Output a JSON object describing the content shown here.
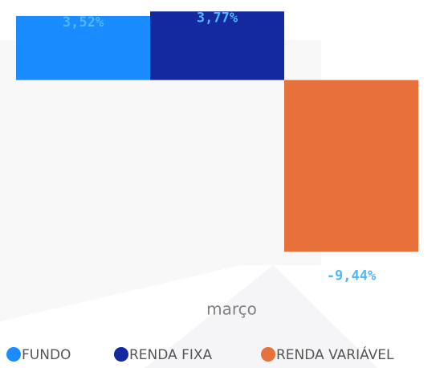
{
  "chart_data": {
    "type": "bar",
    "categories": [
      "março"
    ],
    "series": [
      {
        "name": "FUNDO",
        "color": "#1a8cff",
        "values": [
          3.52
        ],
        "value_labels": [
          "3,52%"
        ]
      },
      {
        "name": "RENDA FIXA",
        "color": "#1428a0",
        "values": [
          3.77
        ],
        "value_labels": [
          "3,77%"
        ]
      },
      {
        "name": "RENDA VARIÁVEL",
        "color": "#e8703a",
        "values": [
          -9.44
        ],
        "value_labels": [
          "-9,44%"
        ]
      }
    ],
    "ylim": [
      -10,
      4.4
    ],
    "legend": "bottom"
  }
}
